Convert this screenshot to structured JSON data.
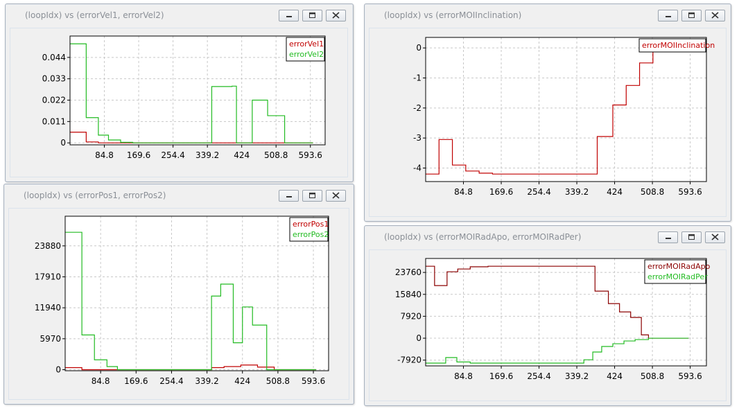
{
  "windows": [
    {
      "id": "w1",
      "title": "(loopIdx) vs (errorVel1, errorVel2)",
      "chart_data": {
        "type": "line",
        "x_ticks": [
          84.8,
          169.6,
          254.4,
          339.2,
          424,
          508.8,
          593.6
        ],
        "x_tick_labels": [
          "84.8",
          "169.6",
          "254.4",
          "339.2",
          "424",
          "508.8",
          "593.6"
        ],
        "y_ticks": [
          0,
          0.011,
          0.022,
          0.033,
          0.044
        ],
        "y_tick_labels": [
          "0",
          "0.011",
          "0.022",
          "0.033",
          "0.044"
        ],
        "xlim": [
          0,
          630
        ],
        "ylim": [
          -0.001,
          0.055
        ],
        "grid": true,
        "legend_position": "top-right",
        "series": [
          {
            "name": "errorVel1",
            "color": "#c00000",
            "step": true,
            "points": [
              [
                0,
                0.0055
              ],
              [
                40,
                0.0005
              ],
              [
                70,
                0.0
              ],
              [
                600,
                0.0
              ]
            ]
          },
          {
            "name": "errorVel2",
            "color": "#22bb22",
            "step": true,
            "points": [
              [
                0,
                0.051
              ],
              [
                40,
                0.013
              ],
              [
                70,
                0.004
              ],
              [
                95,
                0.0015
              ],
              [
                125,
                0.0003
              ],
              [
                155,
                0.0
              ],
              [
                345,
                0.0
              ],
              [
                350,
                0.029
              ],
              [
                400,
                0.0292
              ],
              [
                411,
                0.0
              ],
              [
                411,
                0.0
              ],
              [
                412,
                0.0
              ],
              [
                450,
                0.022
              ],
              [
                488,
                0.014
              ],
              [
                530,
                0.0
              ],
              [
                600,
                0.0
              ]
            ]
          }
        ]
      }
    },
    {
      "id": "w2",
      "title": "(loopIdx) vs (errorMOIInclination)",
      "chart_data": {
        "type": "line",
        "x_ticks": [
          84.8,
          169.6,
          254.4,
          339.2,
          424,
          508.8,
          593.6
        ],
        "x_tick_labels": [
          "84.8",
          "169.6",
          "254.4",
          "339.2",
          "424",
          "508.8",
          "593.6"
        ],
        "y_ticks": [
          -4,
          -3,
          -2,
          -1,
          0
        ],
        "y_tick_labels": [
          "-4",
          "-3",
          "-2",
          "-1",
          "0"
        ],
        "xlim": [
          0,
          630
        ],
        "ylim": [
          -4.45,
          0.35
        ],
        "grid": true,
        "legend_position": "top-right",
        "series": [
          {
            "name": "errorMOIInclination",
            "color": "#c00000",
            "step": true,
            "points": [
              [
                0,
                -4.2
              ],
              [
                30,
                -3.05
              ],
              [
                60,
                -3.9
              ],
              [
                90,
                -4.1
              ],
              [
                120,
                -4.17
              ],
              [
                150,
                -4.2
              ],
              [
                345,
                -4.2
              ],
              [
                385,
                -2.95
              ],
              [
                420,
                -1.9
              ],
              [
                450,
                -1.25
              ],
              [
                480,
                -0.5
              ],
              [
                510,
                0.1
              ],
              [
                520,
                0.1
              ]
            ]
          }
        ]
      }
    },
    {
      "id": "w3",
      "title": "(loopIdx) vs (errorPos1, errorPos2)",
      "chart_data": {
        "type": "line",
        "x_ticks": [
          84.8,
          169.6,
          254.4,
          339.2,
          424,
          508.8,
          593.6
        ],
        "x_tick_labels": [
          "84.8",
          "169.6",
          "254.4",
          "339.2",
          "424",
          "508.8",
          "593.6"
        ],
        "y_ticks": [
          0,
          5970,
          11940,
          17910,
          23880
        ],
        "y_tick_labels": [
          "0",
          "5970",
          "11940",
          "17910",
          "23880"
        ],
        "xlim": [
          0,
          630
        ],
        "ylim": [
          -200,
          29600
        ],
        "grid": true,
        "legend_position": "top-right",
        "series": [
          {
            "name": "errorPos1",
            "color": "#c00000",
            "step": true,
            "points": [
              [
                0,
                400
              ],
              [
                40,
                0
              ],
              [
                345,
                0
              ],
              [
                350,
                400
              ],
              [
                380,
                600
              ],
              [
                420,
                900
              ],
              [
                460,
                500
              ],
              [
                500,
                0
              ],
              [
                600,
                0
              ]
            ]
          },
          {
            "name": "errorPos2",
            "color": "#22bb22",
            "step": true,
            "points": [
              [
                0,
                26500
              ],
              [
                40,
                6700
              ],
              [
                70,
                1900
              ],
              [
                100,
                600
              ],
              [
                125,
                0
              ],
              [
                345,
                0
              ],
              [
                350,
                14200
              ],
              [
                372,
                16500
              ],
              [
                402,
                5200
              ],
              [
                424,
                12100
              ],
              [
                448,
                8600
              ],
              [
                482,
                0
              ],
              [
                600,
                0
              ]
            ]
          }
        ]
      }
    },
    {
      "id": "w4",
      "title": "(loopIdx) vs (errorMOIRadApo, errorMOIRadPer)",
      "chart_data": {
        "type": "line",
        "x_ticks": [
          84.8,
          169.6,
          254.4,
          339.2,
          424,
          508.8,
          593.6
        ],
        "x_tick_labels": [
          "84.8",
          "169.6",
          "254.4",
          "339.2",
          "424",
          "508.8",
          "593.6"
        ],
        "y_ticks": [
          -7920,
          0,
          7920,
          15840,
          23760
        ],
        "y_tick_labels": [
          "-7920",
          "0",
          "7920",
          "15840",
          "23760"
        ],
        "xlim": [
          0,
          630
        ],
        "ylim": [
          -10000,
          28800
        ],
        "grid": true,
        "legend_position": "top-right",
        "series": [
          {
            "name": "errorMOIRadApo",
            "color": "#8b0000",
            "step": true,
            "points": [
              [
                0,
                26000
              ],
              [
                20,
                19000
              ],
              [
                48,
                24000
              ],
              [
                72,
                25000
              ],
              [
                100,
                25800
              ],
              [
                140,
                26000
              ],
              [
                345,
                26000
              ],
              [
                380,
                17000
              ],
              [
                410,
                12500
              ],
              [
                435,
                9500
              ],
              [
                460,
                7500
              ],
              [
                484,
                1200
              ],
              [
                500,
                0
              ],
              [
                590,
                0
              ]
            ]
          },
          {
            "name": "errorMOIRadPer",
            "color": "#22bb22",
            "step": true,
            "points": [
              [
                0,
                -9000
              ],
              [
                45,
                -7000
              ],
              [
                70,
                -8600
              ],
              [
                100,
                -9000
              ],
              [
                345,
                -9000
              ],
              [
                355,
                -7800
              ],
              [
                375,
                -5000
              ],
              [
                395,
                -3000
              ],
              [
                420,
                -2000
              ],
              [
                445,
                -1000
              ],
              [
                470,
                -500
              ],
              [
                500,
                0
              ],
              [
                590,
                0
              ]
            ]
          }
        ]
      }
    }
  ]
}
